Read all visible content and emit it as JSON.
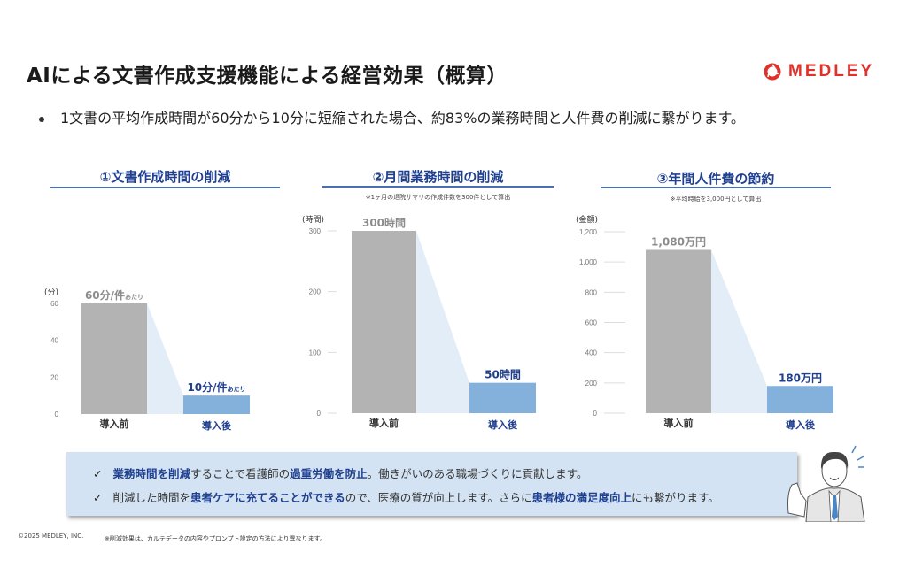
{
  "header": {
    "title": "AIによる文書作成支援機能による経営効果（概算）",
    "logo_text": "MEDLEY",
    "brand_color": "#e0312b"
  },
  "summary": "1文書の平均作成時間が60分から10分に短縮された場合、約83%の業務時間と人件費の削減に繋がります。",
  "chart_data": [
    {
      "type": "bar",
      "title": "①文書作成時間の削減",
      "note": "",
      "ylabel": "(分)",
      "ylim": [
        0,
        60
      ],
      "yticks": [
        "0",
        "20",
        "40",
        "60"
      ],
      "ytick_values": [
        0,
        20,
        40,
        60
      ],
      "categories": [
        "導入前",
        "導入後"
      ],
      "values": [
        60,
        10
      ],
      "data_labels": [
        {
          "main": "60分/件",
          "sub": "あたり"
        },
        {
          "main": "10分/件",
          "sub": "あたり"
        }
      ],
      "gridlines": false
    },
    {
      "type": "bar",
      "title": "②月間業務時間の削減",
      "note": "※1ヶ月の退院サマリの作成件数を300件として算出",
      "ylabel": "(時間)",
      "ylim": [
        0,
        300
      ],
      "yticks": [
        "0",
        "100",
        "200",
        "300"
      ],
      "ytick_values": [
        0,
        100,
        200,
        300
      ],
      "categories": [
        "導入前",
        "導入後"
      ],
      "values": [
        300,
        50
      ],
      "data_labels": [
        {
          "main": "300時間",
          "sub": ""
        },
        {
          "main": "50時間",
          "sub": ""
        }
      ],
      "gridlines": true
    },
    {
      "type": "bar",
      "title": "③年間人件費の節約",
      "note": "※平均時給を3,000円として算出",
      "ylabel": "(金額)",
      "ylim": [
        0,
        1200
      ],
      "yticks": [
        "0",
        "200",
        "400",
        "600",
        "800",
        "1,000",
        "1,200"
      ],
      "ytick_values": [
        0,
        200,
        400,
        600,
        800,
        1000,
        1200
      ],
      "categories": [
        "導入前",
        "導入後"
      ],
      "values": [
        1080,
        180
      ],
      "data_labels": [
        {
          "main": "1,080万円",
          "sub": ""
        },
        {
          "main": "180万円",
          "sub": ""
        }
      ],
      "gridlines": true
    }
  ],
  "colors": {
    "before_bar": "#b3b3b3",
    "after_bar": "#84b0dc",
    "connector": "#e3edf7",
    "before_label": "#8c8c8c",
    "after_label": "#1f3f8f",
    "accent": "#1f3f8f"
  },
  "messages": [
    {
      "icon": "✓",
      "segments": [
        {
          "text": "業務時間を削減",
          "bold": true
        },
        {
          "text": "することで看護師の",
          "bold": false
        },
        {
          "text": "過重労働を防止",
          "bold": true
        },
        {
          "text": "。働きがいのある職場づくりに貢献します。",
          "bold": false
        }
      ]
    },
    {
      "icon": "✓",
      "segments": [
        {
          "text": "削減した時間を",
          "bold": false
        },
        {
          "text": "患者ケアに充てることができる",
          "bold": true
        },
        {
          "text": "ので、医療の質が向上します。さらに",
          "bold": false
        },
        {
          "text": "患者様の満足度向上",
          "bold": true
        },
        {
          "text": "にも繋がります。",
          "bold": false
        }
      ]
    }
  ],
  "footer": {
    "copyright": "©2025 MEDLEY, INC.",
    "note": "※削減効果は、カルテデータの内容やプロンプト設定の方法により異なります。"
  }
}
